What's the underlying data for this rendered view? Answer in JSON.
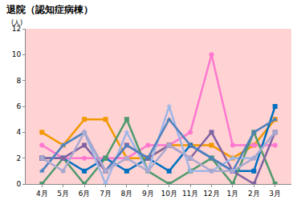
{
  "chart_data": {
    "type": "line",
    "title": "退院（認知症病棟）",
    "ylabel": "(人)",
    "categories": [
      "4月",
      "5月",
      "6月",
      "7月",
      "8月",
      "9月",
      "10月",
      "11月",
      "12月",
      "1月",
      "2月",
      "3月"
    ],
    "ylim": [
      0,
      12
    ],
    "yticks": [
      0,
      2,
      4,
      6,
      8,
      10,
      12
    ],
    "grid": false,
    "series": [
      {
        "color": "#F39800",
        "marker": "square",
        "values": [
          4,
          3,
          5,
          5,
          2,
          2,
          3,
          3,
          3,
          2,
          3,
          5
        ]
      },
      {
        "color": "#FF77D0",
        "marker": "circle",
        "values": [
          3,
          2,
          2,
          2,
          2,
          3,
          3,
          4,
          10,
          3,
          3,
          3
        ]
      },
      {
        "color": "#0070C0",
        "marker": "square",
        "values": [
          2,
          2,
          1,
          2,
          1,
          2,
          1,
          3,
          2,
          1,
          1,
          6
        ]
      },
      {
        "color": "#4E9A6E",
        "marker": "square",
        "values": [
          0,
          2,
          0,
          2,
          5,
          1,
          0,
          1,
          2,
          0,
          4,
          0
        ]
      },
      {
        "color": "#8064A2",
        "marker": "square",
        "values": [
          2,
          2,
          3,
          1,
          3,
          2,
          3,
          2,
          4,
          1,
          0,
          4
        ]
      },
      {
        "color": "#9DB6E8",
        "marker": "star",
        "values": [
          1,
          3,
          4,
          0,
          4,
          1,
          6,
          1,
          1,
          2,
          2,
          4
        ]
      },
      {
        "color": "#4F81BD",
        "marker": "triangle-up",
        "values": [
          1,
          3,
          4,
          1,
          3,
          2,
          5,
          3,
          2,
          1,
          4,
          5
        ]
      },
      {
        "color": "#A9A9D0",
        "marker": "circle",
        "values": [
          2,
          1,
          4,
          1,
          2,
          1,
          3,
          2,
          1,
          1,
          2,
          4
        ]
      }
    ]
  }
}
